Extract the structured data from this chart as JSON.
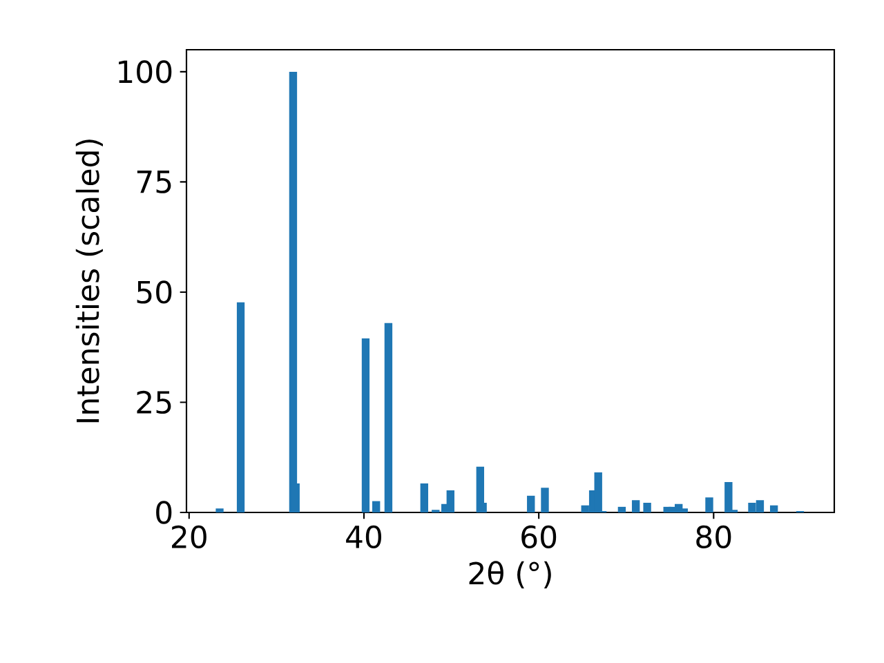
{
  "chart_data": {
    "type": "bar",
    "xlabel": "2θ (°)",
    "ylabel": "Intensities (scaled)",
    "x": [
      23.5,
      25.9,
      31.9,
      32.2,
      40.2,
      41.4,
      42.8,
      46.9,
      48.2,
      49.3,
      49.9,
      53.3,
      53.6,
      59.1,
      60.7,
      65.3,
      66.2,
      66.8,
      67.3,
      69.5,
      71.1,
      72.4,
      74.7,
      75.3,
      76.0,
      76.6,
      79.5,
      81.7,
      82.3,
      84.4,
      85.3,
      86.9,
      89.9
    ],
    "values": [
      0.9,
      47.7,
      100,
      6.6,
      39.5,
      2.6,
      43.0,
      6.6,
      0.6,
      1.9,
      5.0,
      10.4,
      2.2,
      3.8,
      5.6,
      1.6,
      5.0,
      9.1,
      0.3,
      1.3,
      2.8,
      2.2,
      1.3,
      1.3,
      1.9,
      0.9,
      3.4,
      6.9,
      0.6,
      2.2,
      2.8,
      1.6,
      0.3
    ],
    "color": "#1f77b4",
    "xlim": [
      19.7,
      93.8
    ],
    "ylim": [
      0,
      105
    ],
    "xticks": [
      20,
      40,
      60,
      80
    ],
    "yticks": [
      0,
      25,
      50,
      75,
      100
    ]
  }
}
